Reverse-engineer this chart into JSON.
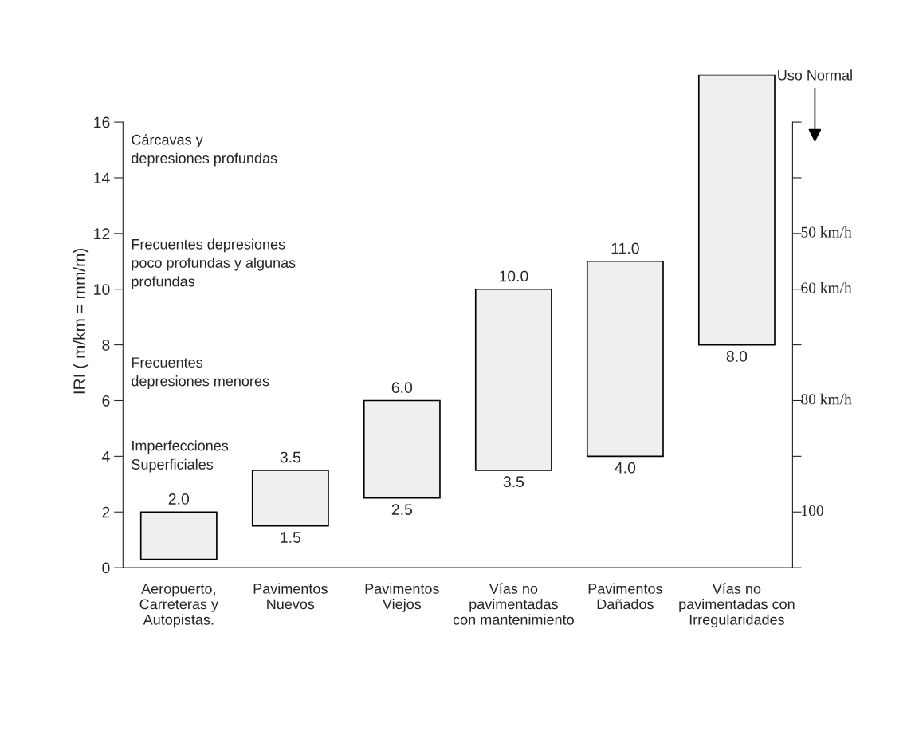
{
  "chart_data": {
    "type": "bar",
    "ylabel": "IRI ( m/km = mm/m)",
    "categories": [
      "Aeropuerto,\nCarreteras y\nAutopistas.",
      "Pavimentos\nNuevos",
      "Pavimentos\nViejos",
      "Vías no\npavimentadas\ncon mantenimiento",
      "Pavimentos\nDañados",
      "Vías no\npavimentadas con\nIrregularidades"
    ],
    "values": [
      1.7,
      2.0,
      3.5,
      6.5,
      7.0,
      9.7
    ],
    "base": [
      0.3,
      1.5,
      2.5,
      3.5,
      4.0,
      8.0
    ],
    "color": "#efefef",
    "ylim": [
      0,
      17.7
    ],
    "yticks": [
      0,
      2,
      4,
      6,
      8,
      10,
      12,
      14,
      16
    ],
    "annotations": [
      "Cárcavas y\ndepresiones profundas",
      "Frecuentes depresiones\npoco profundas y algunas\nprofundas",
      "Frecuentes\ndepresiones menores",
      "Imperfecciones\nSuperficiales",
      "50 km/h",
      "60 km/h",
      "80 km/h",
      "100",
      {
        "text": "2.0",
        "x": "Aeropuerto,\nCarreteras y\nAutopistas.",
        "y": 2.0
      },
      {
        "text": "3.5",
        "x": "Pavimentos\nNuevos",
        "y": 3.5
      },
      {
        "text": "1.5",
        "x": "Pavimentos\nNuevos",
        "y": 1.5
      },
      {
        "text": "6.0",
        "x": "Pavimentos\nViejos",
        "y": 6.0
      },
      {
        "text": "2.5",
        "x": "Pavimentos\nViejos",
        "y": 2.5
      },
      {
        "text": "10.0",
        "x": "Vías no\npavimentadas\ncon mantenimiento",
        "y": 10.0
      },
      {
        "text": "3.5",
        "x": "Vías no\npavimentadas\ncon mantenimiento",
        "y": 3.5
      },
      {
        "text": "11.0",
        "x": "Pavimentos\nDañados",
        "y": 11.0
      },
      {
        "text": "4.0",
        "x": "Pavimentos\nDañados",
        "y": 4.0
      },
      {
        "text": "8.0",
        "x": "Vías no\npavimentadas con\nIrregularidades",
        "y": 8.0
      },
      "Uso Normal"
    ],
    "grid": false,
    "legend": false
  }
}
